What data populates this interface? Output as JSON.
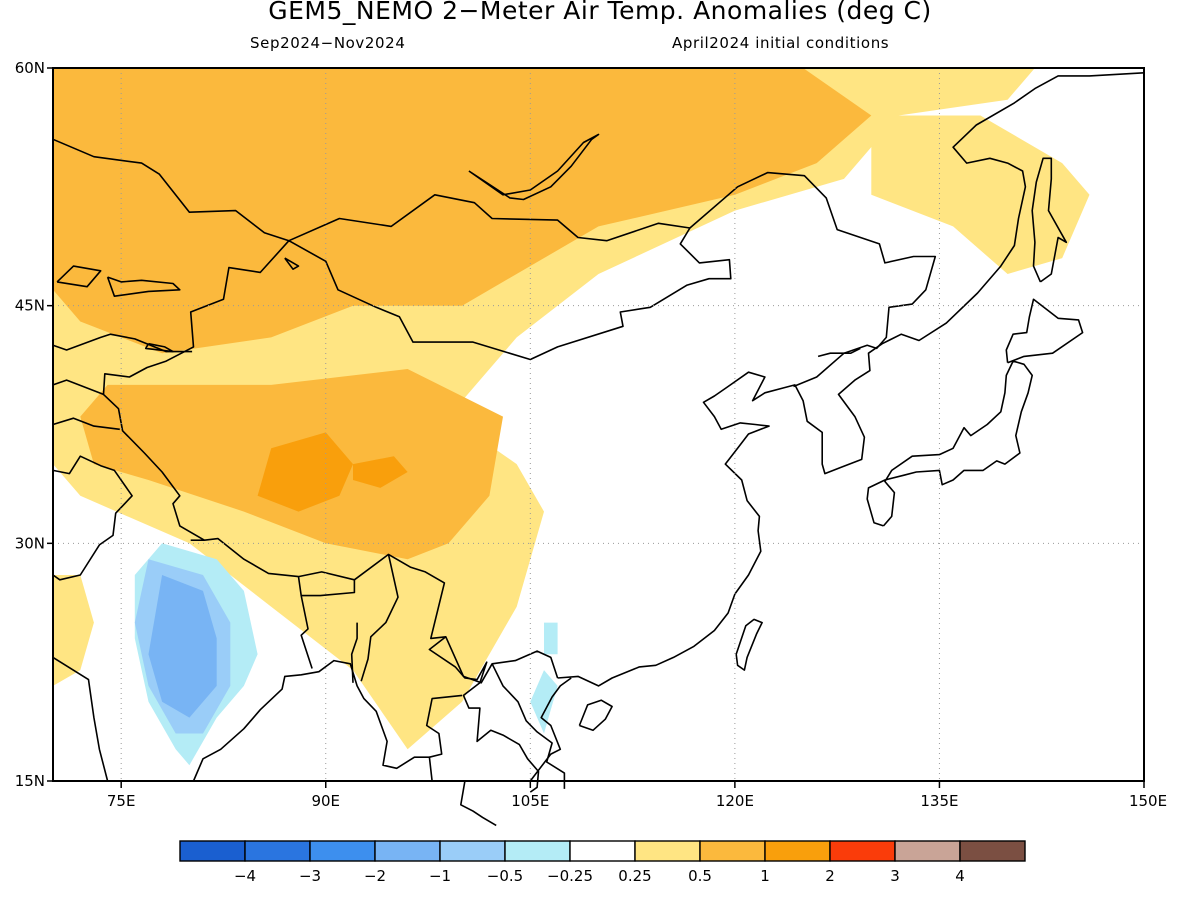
{
  "title": "GEM5_NEMO 2−Meter Air Temp. Anomalies (deg C)",
  "subtitle_left": "Sep2024−Nov2024",
  "subtitle_right": "April2024 initial conditions",
  "map": {
    "lat_range": [
      15,
      60
    ],
    "lon_range": [
      70,
      150
    ],
    "lat_ticks": [
      {
        "value": 60,
        "label": "60N"
      },
      {
        "value": 45,
        "label": "45N"
      },
      {
        "value": 30,
        "label": "30N"
      },
      {
        "value": 15,
        "label": "15N"
      }
    ],
    "lon_ticks": [
      {
        "value": 75,
        "label": "75E"
      },
      {
        "value": 90,
        "label": "90E"
      },
      {
        "value": 105,
        "label": "105E"
      },
      {
        "value": 120,
        "label": "120E"
      },
      {
        "value": 135,
        "label": "135E"
      },
      {
        "value": 150,
        "label": "150E"
      }
    ],
    "grid": "dotted"
  },
  "legend": {
    "bins": [
      {
        "color": "#1a5fd0"
      },
      {
        "color": "#2a75e0"
      },
      {
        "color": "#3d8fee"
      },
      {
        "color": "#78b4f4"
      },
      {
        "color": "#9acdf8"
      },
      {
        "color": "#b4ecf6"
      },
      {
        "color": "#ffffff"
      },
      {
        "color": "#ffe583"
      },
      {
        "color": "#fbb93d"
      },
      {
        "color": "#f99f0c"
      },
      {
        "color": "#fa3c0a"
      },
      {
        "color": "#c9a497"
      },
      {
        "color": "#7b4f42"
      }
    ],
    "labels": [
      "−4",
      "−3",
      "−2",
      "−1",
      "−0.5",
      "−0.25",
      "0.25",
      "0.5",
      "1",
      "2",
      "3",
      "4"
    ]
  },
  "anomaly_regions": [
    {
      "level": "0.25 to 0.5",
      "color": "#ffe583",
      "area": [
        [
          70,
          60
        ],
        [
          142,
          60
        ],
        [
          140,
          58
        ],
        [
          132,
          57
        ],
        [
          128,
          53
        ],
        [
          120,
          51
        ],
        [
          110,
          47
        ],
        [
          104,
          43
        ],
        [
          99,
          38
        ],
        [
          104,
          35
        ],
        [
          106,
          32
        ],
        [
          104,
          26
        ],
        [
          100,
          20
        ],
        [
          96,
          17
        ],
        [
          92,
          22
        ],
        [
          86,
          26
        ],
        [
          80,
          30
        ],
        [
          72,
          33
        ],
        [
          70,
          35
        ]
      ]
    },
    {
      "level": "0.25 to 0.5",
      "color": "#ffe583",
      "area": [
        [
          130,
          57
        ],
        [
          138,
          57
        ],
        [
          144,
          54
        ],
        [
          146,
          52
        ],
        [
          144,
          48
        ],
        [
          140,
          47
        ],
        [
          136,
          50
        ],
        [
          130,
          52
        ]
      ]
    },
    {
      "level": "0.25 to 0.5",
      "color": "#ffe583",
      "area": [
        [
          70,
          28
        ],
        [
          72,
          28
        ],
        [
          73,
          25
        ],
        [
          72,
          22
        ],
        [
          70,
          21
        ]
      ]
    },
    {
      "level": "0.5 to 1",
      "color": "#fbb93d",
      "area": [
        [
          70,
          60
        ],
        [
          125,
          60
        ],
        [
          130,
          57
        ],
        [
          126,
          54
        ],
        [
          120,
          52
        ],
        [
          110,
          50
        ],
        [
          100,
          45
        ],
        [
          92,
          45
        ],
        [
          86,
          43
        ],
        [
          78,
          42
        ],
        [
          72,
          44
        ],
        [
          70,
          46
        ]
      ]
    },
    {
      "level": "0.5 to 1",
      "color": "#fbb93d",
      "area": [
        [
          74,
          40
        ],
        [
          86,
          40
        ],
        [
          96,
          41
        ],
        [
          103,
          38
        ],
        [
          102,
          33
        ],
        [
          99,
          30
        ],
        [
          96,
          29
        ],
        [
          90,
          30
        ],
        [
          84,
          32
        ],
        [
          77,
          34
        ],
        [
          73,
          35
        ],
        [
          72,
          38
        ]
      ]
    },
    {
      "level": "1 to 2",
      "color": "#f99f0c",
      "area": [
        [
          86,
          36
        ],
        [
          90,
          37
        ],
        [
          92,
          35
        ],
        [
          91,
          33
        ],
        [
          88,
          32
        ],
        [
          85,
          33
        ]
      ]
    },
    {
      "level": "1 to 2",
      "color": "#f99f0c",
      "area": [
        [
          92,
          35
        ],
        [
          95,
          35.5
        ],
        [
          96,
          34.5
        ],
        [
          94,
          33.5
        ],
        [
          92,
          34
        ]
      ]
    },
    {
      "level": "-0.25 to -0.5",
      "color": "#b4ecf6",
      "area": [
        [
          78,
          30
        ],
        [
          82,
          29
        ],
        [
          84,
          27
        ],
        [
          85,
          23
        ],
        [
          84,
          21
        ],
        [
          82,
          19
        ],
        [
          80,
          16
        ],
        [
          79,
          17
        ],
        [
          77,
          20
        ],
        [
          76,
          24
        ],
        [
          76,
          28
        ]
      ]
    },
    {
      "level": "-0.25 to -0.5",
      "color": "#b4ecf6",
      "area": [
        [
          106,
          23
        ],
        [
          106,
          25
        ],
        [
          107,
          25
        ],
        [
          107,
          23
        ]
      ]
    },
    {
      "level": "-0.25 to -0.5",
      "color": "#b4ecf6",
      "area": [
        [
          105,
          20
        ],
        [
          106,
          22
        ],
        [
          107,
          21
        ],
        [
          106,
          18
        ]
      ]
    },
    {
      "level": "-0.5 to -1",
      "color": "#9acdf8",
      "area": [
        [
          77,
          29
        ],
        [
          81,
          28
        ],
        [
          83,
          25
        ],
        [
          83,
          21
        ],
        [
          81,
          18
        ],
        [
          79,
          18
        ],
        [
          77,
          21
        ],
        [
          76,
          25
        ]
      ]
    },
    {
      "level": "-1 to -2",
      "color": "#78b4f4",
      "area": [
        [
          78,
          28
        ],
        [
          81,
          27
        ],
        [
          82,
          24
        ],
        [
          82,
          21
        ],
        [
          80,
          19
        ],
        [
          78,
          20
        ],
        [
          77,
          23
        ]
      ]
    }
  ]
}
